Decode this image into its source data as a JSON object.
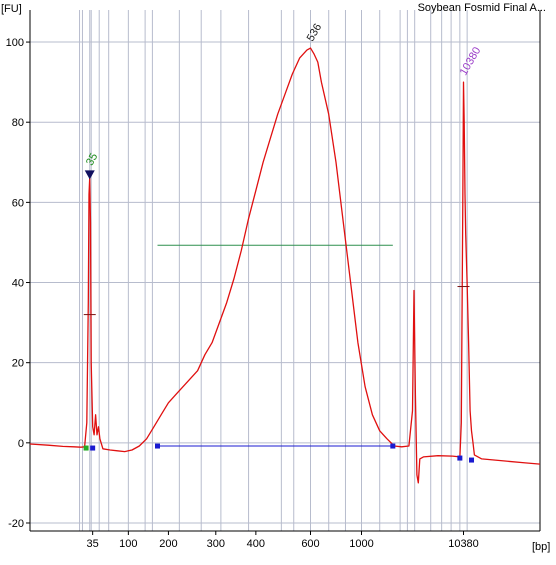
{
  "chart_data": {
    "type": "line",
    "title": "Soybean Fosmid Final A...",
    "ylabel": "[FU]",
    "xlabel": "[bp]",
    "ylim": [
      -22,
      108
    ],
    "yticks": [
      -20,
      0,
      20,
      40,
      60,
      80,
      100
    ],
    "xticks": [
      "35",
      "100",
      "200",
      "300",
      "400",
      "600",
      "1000",
      "10380"
    ],
    "grid": true,
    "colors": {
      "trace": "#e01010",
      "baseline": "#1a1ad0",
      "grid": "#b7bccd",
      "region_bar": "#2f8f4f",
      "label_35": "#1e8c1e",
      "label_536": "#222222",
      "label_10380": "#9a3cc8"
    },
    "series": [
      {
        "points": [
          [
            0,
            -0.3
          ],
          [
            25,
            -0.6
          ],
          [
            45,
            -0.9
          ],
          [
            60,
            -1.0
          ],
          [
            70,
            -1.1
          ],
          [
            75,
            -1.0
          ],
          [
            78,
            5
          ],
          [
            80,
            35
          ],
          [
            81,
            62
          ],
          [
            82,
            66
          ],
          [
            83,
            55
          ],
          [
            84,
            20
          ],
          [
            86,
            4
          ],
          [
            88,
            2
          ],
          [
            90,
            7
          ],
          [
            92,
            2
          ],
          [
            94,
            4
          ],
          [
            96,
            1
          ],
          [
            100,
            -1.5
          ],
          [
            110,
            -1.8
          ],
          [
            120,
            -2.0
          ],
          [
            130,
            -2.2
          ],
          [
            140,
            -1.8
          ],
          [
            150,
            -0.8
          ],
          [
            160,
            1
          ],
          [
            170,
            4
          ],
          [
            180,
            7
          ],
          [
            190,
            10
          ],
          [
            200,
            12
          ],
          [
            210,
            14
          ],
          [
            220,
            16
          ],
          [
            230,
            18
          ],
          [
            240,
            22
          ],
          [
            250,
            25
          ],
          [
            260,
            30
          ],
          [
            270,
            35
          ],
          [
            280,
            41
          ],
          [
            290,
            48
          ],
          [
            300,
            56
          ],
          [
            310,
            63
          ],
          [
            320,
            70
          ],
          [
            330,
            76
          ],
          [
            340,
            82
          ],
          [
            350,
            87
          ],
          [
            360,
            92
          ],
          [
            370,
            96
          ],
          [
            380,
            98
          ],
          [
            385,
            98.5
          ],
          [
            390,
            97
          ],
          [
            395,
            95
          ],
          [
            400,
            90
          ],
          [
            410,
            82
          ],
          [
            420,
            70
          ],
          [
            430,
            55
          ],
          [
            440,
            40
          ],
          [
            450,
            25
          ],
          [
            460,
            14
          ],
          [
            470,
            7
          ],
          [
            480,
            3
          ],
          [
            490,
            1
          ],
          [
            500,
            -0.8
          ],
          [
            510,
            -1.0
          ],
          [
            520,
            -0.8
          ],
          [
            525,
            8
          ],
          [
            527,
            38
          ],
          [
            529,
            12
          ],
          [
            531,
            -8
          ],
          [
            533,
            -10
          ],
          [
            535,
            -4
          ],
          [
            540,
            -3.5
          ],
          [
            560,
            -3.2
          ],
          [
            580,
            -3.3
          ],
          [
            590,
            -3.5
          ],
          [
            592,
            5
          ],
          [
            594,
            60
          ],
          [
            595,
            90
          ],
          [
            596,
            80
          ],
          [
            597,
            62
          ],
          [
            598,
            52
          ],
          [
            600,
            40
          ],
          [
            602,
            25
          ],
          [
            604,
            8
          ],
          [
            606,
            3
          ],
          [
            608,
            0
          ],
          [
            610,
            -3
          ],
          [
            620,
            -4
          ],
          [
            650,
            -4.5
          ],
          [
            680,
            -5
          ],
          [
            700,
            -5.3
          ]
        ]
      }
    ],
    "region": {
      "from": 175,
      "to": 498,
      "level": 49.3
    },
    "baseline_segment": {
      "from": 175,
      "to": 498,
      "level": -0.8
    },
    "markers": [
      {
        "x": 77,
        "y": -1.3,
        "color": "#22aa22"
      },
      {
        "x": 86,
        "y": -1.3,
        "color": "#1a1ad0"
      },
      {
        "x": 175,
        "y": -0.8,
        "color": "#1a1ad0"
      },
      {
        "x": 498,
        "y": -0.8,
        "color": "#1a1ad0"
      },
      {
        "x": 590,
        "y": -3.8,
        "color": "#1a1ad0"
      },
      {
        "x": 606,
        "y": -4.3,
        "color": "#1a1ad0"
      }
    ],
    "peaks": [
      {
        "label": "35",
        "x": 82,
        "y": 66,
        "color": "#1e8c1e"
      },
      {
        "label": "536",
        "x": 385,
        "y": 98.5,
        "color": "#222222"
      },
      {
        "label": "10380",
        "x": 595,
        "y": 90,
        "color": "#9a3cc8"
      }
    ]
  }
}
